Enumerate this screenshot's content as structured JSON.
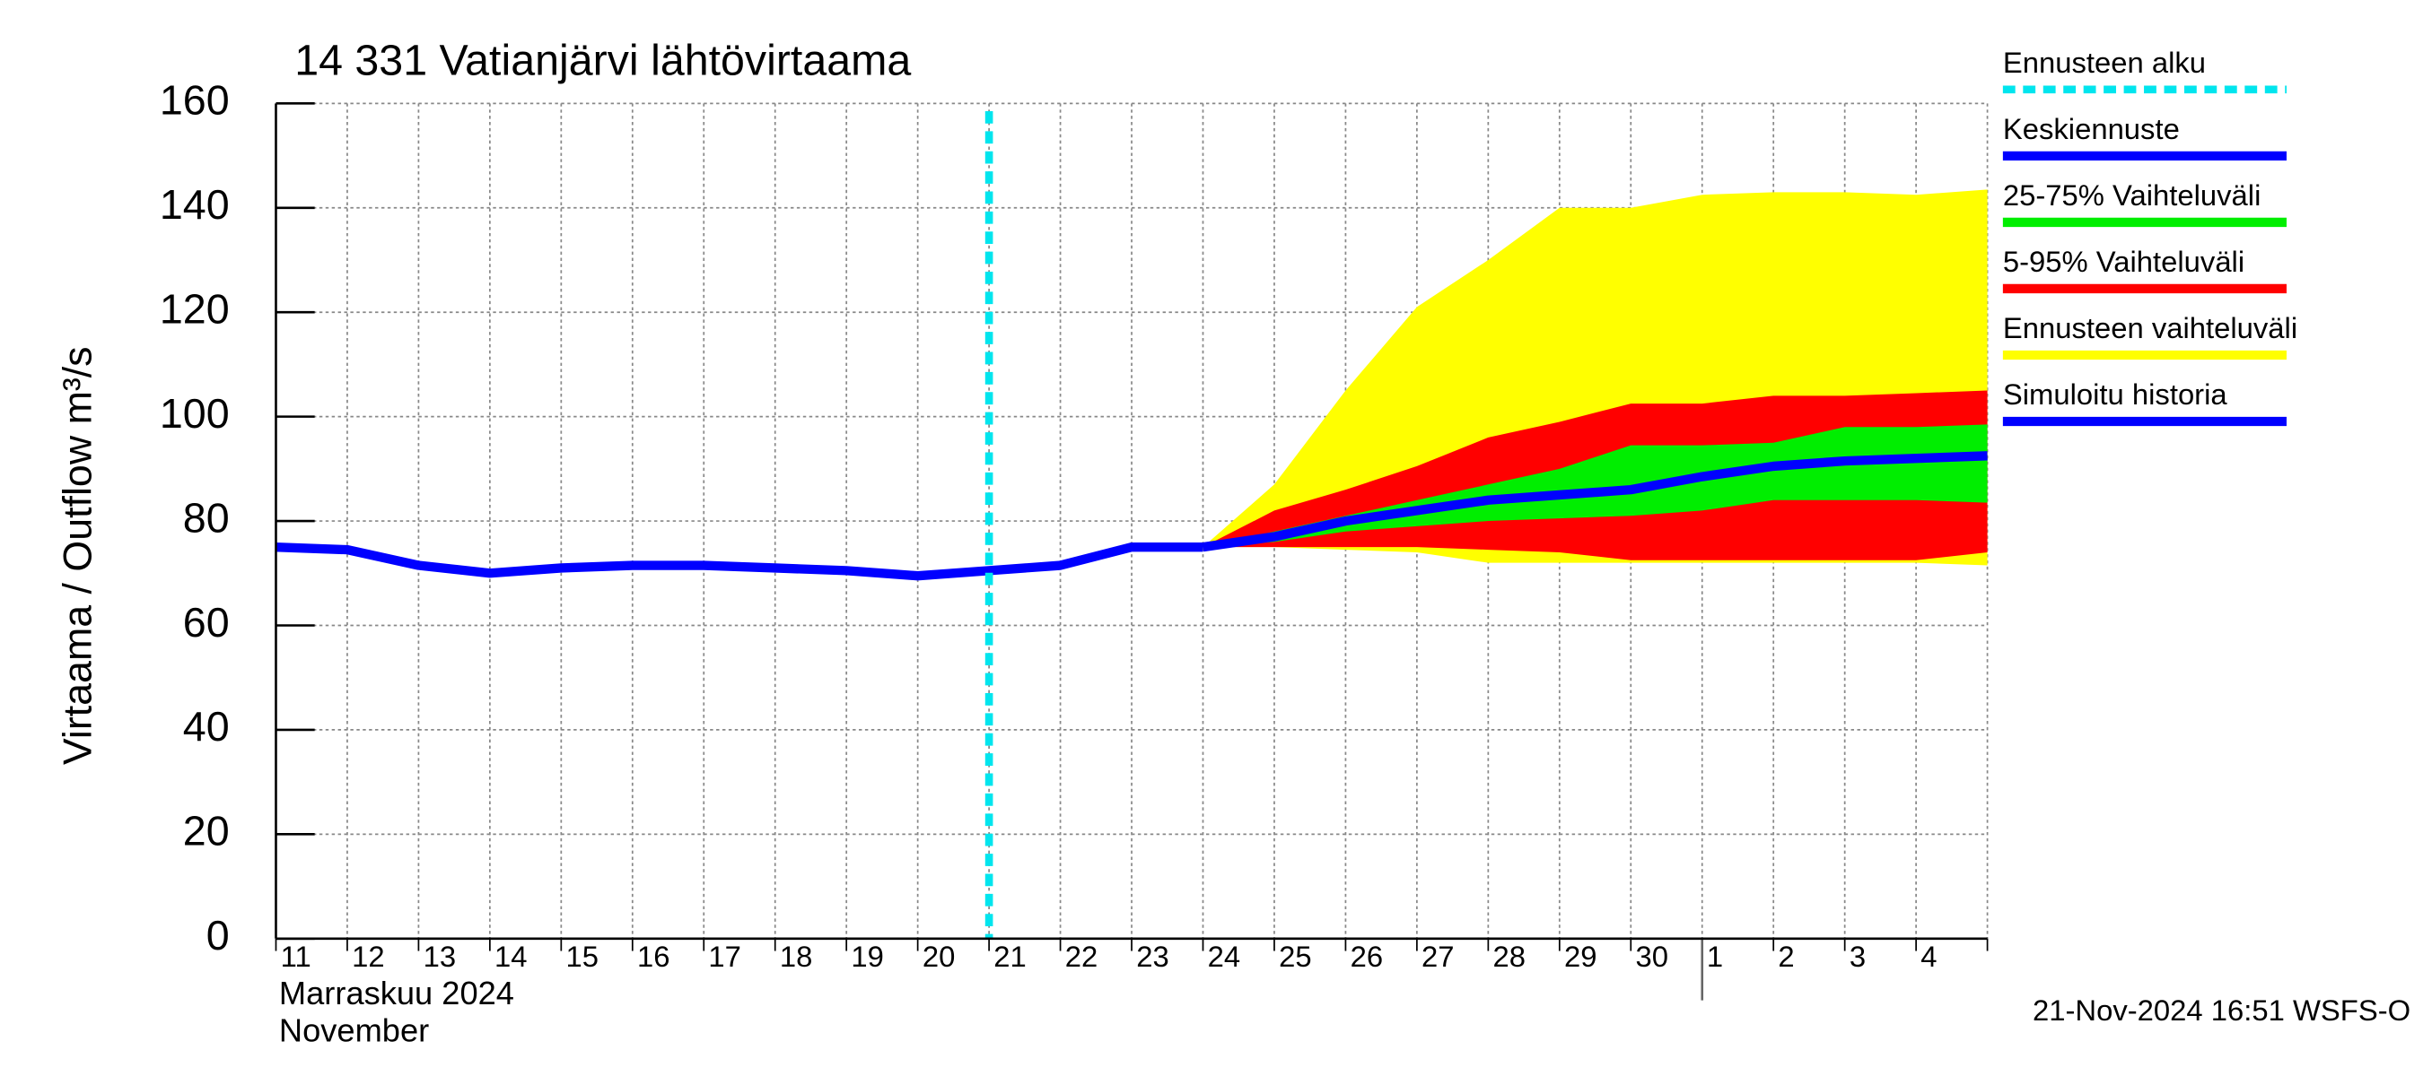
{
  "chart_data": {
    "type": "band-forecast",
    "title": "14 331 Vatianjärvi lähtövirtaama",
    "y_label": "Virtaama / Outflow    m³/s",
    "x_label_fi": "Marraskuu 2024",
    "x_label_en": "November",
    "timestamp": "21-Nov-2024 16:51 WSFS-O",
    "categories": [
      "11",
      "12",
      "13",
      "14",
      "15",
      "16",
      "17",
      "18",
      "19",
      "20",
      "21",
      "22",
      "23",
      "24",
      "25",
      "26",
      "27",
      "28",
      "29",
      "30",
      "1",
      "2",
      "3",
      "4",
      null
    ],
    "month_start": "1",
    "forecast_start": {
      "name": "Ennusteen alku",
      "color": "#00e5ee",
      "category": "21"
    },
    "ylim": [
      0,
      160
    ],
    "yticks": [
      0,
      20,
      40,
      60,
      80,
      100,
      120,
      140,
      160
    ],
    "grid": true,
    "series": [
      {
        "name": "Keskiennuste",
        "color": "#0000ff",
        "values": [
          null,
          null,
          null,
          null,
          null,
          null,
          null,
          null,
          null,
          null,
          null,
          null,
          null,
          75,
          77,
          80,
          82,
          84,
          85,
          86,
          88.5,
          90.5,
          91.5,
          92,
          92.5
        ]
      },
      {
        "name": "25-75% Vaihteluväli",
        "color": "#00ee00",
        "low": [
          null,
          null,
          null,
          null,
          null,
          null,
          null,
          null,
          null,
          null,
          null,
          null,
          null,
          75,
          76,
          78,
          79,
          80,
          80.5,
          81,
          82,
          84,
          84,
          84,
          83.5
        ],
        "high": [
          null,
          null,
          null,
          null,
          null,
          null,
          null,
          null,
          null,
          null,
          null,
          null,
          null,
          75,
          78,
          81,
          84,
          87,
          90,
          94.5,
          94.5,
          95,
          98,
          98,
          98.5
        ]
      },
      {
        "name": "5-95% Vaihteluväli",
        "color": "#ff0000",
        "low": [
          null,
          null,
          null,
          null,
          null,
          null,
          null,
          null,
          null,
          null,
          null,
          null,
          null,
          75,
          75,
          75,
          75,
          74.5,
          74,
          72.5,
          72.5,
          72.5,
          72.5,
          72.5,
          74
        ],
        "high": [
          null,
          null,
          null,
          null,
          null,
          null,
          null,
          null,
          null,
          null,
          null,
          null,
          null,
          75,
          82,
          86,
          90.5,
          96,
          99,
          102.5,
          102.5,
          104,
          104,
          104.5,
          105
        ]
      },
      {
        "name": "Ennusteen vaihteluväli",
        "color": "#ffff00",
        "low": [
          null,
          null,
          null,
          null,
          null,
          null,
          null,
          null,
          null,
          null,
          null,
          null,
          null,
          75,
          75,
          74.5,
          74,
          72,
          72,
          72,
          72,
          72,
          72,
          72,
          71.5
        ],
        "high": [
          null,
          null,
          null,
          null,
          null,
          null,
          null,
          null,
          null,
          null,
          null,
          null,
          null,
          75,
          87,
          105,
          121,
          130,
          140,
          140,
          142.5,
          143,
          143,
          142.5,
          143.5
        ]
      },
      {
        "name": "Simuloitu historia",
        "color": "#0000ff",
        "values": [
          75,
          74.5,
          71.5,
          70,
          71,
          71.5,
          71.5,
          71,
          70.5,
          69.5,
          70.5,
          71.5,
          75,
          75,
          null,
          null,
          null,
          null,
          null,
          null,
          null,
          null,
          null,
          null,
          null
        ]
      }
    ]
  }
}
